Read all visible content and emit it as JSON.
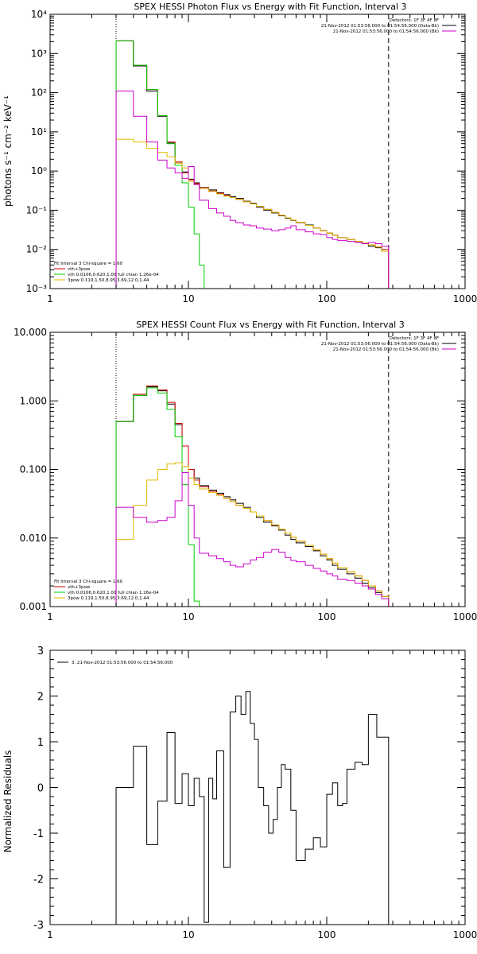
{
  "chart_data": [
    {
      "type": "line",
      "title": "SPEX HESSI Photon Flux vs Energy with Fit Function, Interval 3",
      "xlabel": "",
      "ylabel": "photons s⁻¹ cm⁻² keV⁻¹",
      "xscale": "log",
      "yscale": "log",
      "xlim": [
        1,
        1000
      ],
      "ylim": [
        0.001,
        10000
      ],
      "x_ticks": [
        "1",
        "10",
        "100",
        "1000"
      ],
      "y_ticks": [
        "10⁻³",
        "10⁻²",
        "10⁻¹",
        "10⁰",
        "10¹",
        "10²",
        "10³",
        "10⁴"
      ],
      "legend_top_right": {
        "lines": [
          "Detectors: 1F 3F 4F 8F",
          "21-Nov-2012 01:53:56.000 to 01:54:56.000 (Data-Bk)",
          "21-Nov-2012 01:53:56.000 to 01:54:56.000 (Bk)"
        ],
        "colors": [
          "#000000",
          "#000000",
          "#cc00cc"
        ]
      },
      "legend_bottom_left": {
        "header": "Fit Interval 3   Chi-square = 1.60",
        "lines": [
          "vth+3pow",
          "vth 0.0106,0.620,1.00  full chian 1.26e-04",
          "3pow 0.119,1.50,8.95,3.69,12.0,1.44"
        ],
        "colors": [
          "#cc0000",
          "#00cc00",
          "#ddbb00"
        ]
      },
      "vlines": [
        {
          "x": 3.0,
          "style": "dotted"
        },
        {
          "x": 280,
          "style": "dashed"
        }
      ],
      "series": [
        {
          "role": "data-bk",
          "color": "#000000",
          "edges": [
            3,
            4,
            5,
            6,
            7,
            8,
            9,
            10,
            11,
            12,
            14,
            16,
            18,
            20,
            22,
            25,
            28,
            31,
            35,
            40,
            45,
            50,
            55,
            60,
            70,
            80,
            90,
            100,
            110,
            120,
            140,
            160,
            180,
            200,
            225,
            250,
            280
          ],
          "values": [
            2100,
            480,
            110,
            25,
            5.2,
            1.6,
            0.95,
            0.62,
            0.5,
            0.38,
            0.33,
            0.28,
            0.25,
            0.22,
            0.2,
            0.17,
            0.15,
            0.12,
            0.1,
            0.085,
            0.072,
            0.062,
            0.055,
            0.048,
            0.042,
            0.035,
            0.03,
            0.026,
            0.023,
            0.02,
            0.018,
            0.016,
            0.014,
            0.012,
            0.011,
            0.009
          ]
        },
        {
          "role": "vth+3pow",
          "color": "#cc0000",
          "edges": [
            3,
            4,
            5,
            6,
            7,
            8,
            9,
            10,
            11,
            12,
            14,
            16,
            18,
            20,
            22,
            25,
            28,
            31,
            35,
            40,
            45,
            50,
            55,
            60,
            70,
            80,
            90,
            100,
            110,
            120,
            140,
            160,
            180,
            200,
            225,
            250,
            280
          ],
          "values": [
            2100,
            500,
            120,
            26,
            5.5,
            1.7,
            0.9,
            0.6,
            0.48,
            0.37,
            0.31,
            0.27,
            0.24,
            0.21,
            0.19,
            0.165,
            0.145,
            0.125,
            0.105,
            0.088,
            0.074,
            0.064,
            0.056,
            0.049,
            0.041,
            0.035,
            0.03,
            0.026,
            0.023,
            0.02,
            0.018,
            0.016,
            0.0145,
            0.013,
            0.0115,
            0.01
          ]
        },
        {
          "role": "vth",
          "color": "#00cc00",
          "edges": [
            3,
            4,
            5,
            6,
            7,
            8,
            9,
            10,
            11,
            12,
            13
          ],
          "values": [
            2100,
            500,
            120,
            26,
            5.0,
            1.4,
            0.5,
            0.12,
            0.025,
            0.004
          ]
        },
        {
          "role": "3pow",
          "color": "#ddbb00",
          "edges": [
            3,
            4,
            5,
            6,
            7,
            8,
            9,
            10,
            11,
            12,
            14,
            16,
            18,
            20,
            22,
            25,
            28,
            31,
            35,
            40,
            45,
            50,
            55,
            60,
            70,
            80,
            90,
            100,
            110,
            120,
            140,
            160,
            180,
            200,
            225,
            250,
            280
          ],
          "values": [
            6.5,
            5.5,
            3.8,
            3.0,
            2.3,
            1.6,
            1.2,
            0.55,
            0.45,
            0.36,
            0.3,
            0.26,
            0.23,
            0.21,
            0.19,
            0.165,
            0.145,
            0.125,
            0.105,
            0.088,
            0.074,
            0.064,
            0.056,
            0.049,
            0.041,
            0.035,
            0.03,
            0.026,
            0.023,
            0.02,
            0.018,
            0.016,
            0.0145,
            0.013,
            0.0115,
            0.009
          ]
        },
        {
          "role": "bk",
          "color": "#cc00cc",
          "edges": [
            3,
            4,
            5,
            6,
            7,
            8,
            9,
            10,
            11,
            12,
            14,
            16,
            18,
            20,
            22,
            25,
            28,
            31,
            35,
            40,
            45,
            50,
            55,
            60,
            70,
            80,
            90,
            100,
            110,
            120,
            140,
            160,
            180,
            200,
            225,
            250,
            280
          ],
          "values": [
            110,
            25,
            5.5,
            1.9,
            1.2,
            0.9,
            0.65,
            1.3,
            0.45,
            0.18,
            0.11,
            0.085,
            0.07,
            0.055,
            0.048,
            0.042,
            0.04,
            0.035,
            0.033,
            0.03,
            0.032,
            0.035,
            0.04,
            0.032,
            0.028,
            0.025,
            0.024,
            0.02,
            0.018,
            0.017,
            0.016,
            0.015,
            0.014,
            0.015,
            0.014,
            0.012
          ]
        }
      ]
    },
    {
      "type": "line",
      "title": "SPEX HESSI Count Flux vs Energy with Fit Function, Interval 3",
      "xlabel": "",
      "ylabel": "",
      "xscale": "log",
      "yscale": "log",
      "xlim": [
        1,
        1000
      ],
      "ylim": [
        0.001,
        10
      ],
      "x_ticks": [
        "1",
        "10",
        "100",
        "1000"
      ],
      "y_ticks": [
        "0.001",
        "0.010",
        "0.100",
        "1.000",
        "10.000"
      ],
      "legend_top_right": {
        "lines": [
          "Detectors: 1F 3F 4F 8F",
          "21-Nov-2012 01:53:56.000 to 01:54:56.000 (Data-Bk)",
          "21-Nov-2012 01:53:56.000 to 01:54:56.000 (Bk)"
        ],
        "colors": [
          "#000000",
          "#000000",
          "#cc00cc"
        ]
      },
      "legend_bottom_left": {
        "header": "Fit Interval 3   Chi-square = 1.60",
        "lines": [
          "vth+3pow",
          "vth 0.0106,0.620,1.00  full chian 1.26e-04",
          "3pow 0.119,1.50,8.95,3.69,12.0,1.44"
        ],
        "colors": [
          "#cc0000",
          "#00cc00",
          "#ddbb00"
        ]
      },
      "vlines": [
        {
          "x": 3.0,
          "style": "dotted"
        },
        {
          "x": 280,
          "style": "dashed"
        }
      ],
      "series": [
        {
          "role": "data-bk",
          "color": "#000000",
          "edges": [
            3,
            4,
            5,
            6,
            7,
            8,
            9,
            10,
            11,
            12,
            14,
            16,
            18,
            20,
            22,
            25,
            28,
            31,
            35,
            40,
            45,
            50,
            55,
            60,
            70,
            80,
            90,
            100,
            110,
            120,
            140,
            160,
            180,
            200,
            225,
            250,
            280
          ],
          "values": [
            0.5,
            1.2,
            1.6,
            1.4,
            0.9,
            0.45,
            0.22,
            0.1,
            0.075,
            0.058,
            0.05,
            0.045,
            0.04,
            0.036,
            0.032,
            0.028,
            0.024,
            0.02,
            0.017,
            0.015,
            0.013,
            0.011,
            0.0095,
            0.0085,
            0.0075,
            0.0065,
            0.0055,
            0.0048,
            0.004,
            0.0035,
            0.003,
            0.0026,
            0.0022,
            0.0019,
            0.0016,
            0.0014
          ]
        },
        {
          "role": "vth+3pow",
          "color": "#cc0000",
          "edges": [
            3,
            4,
            5,
            6,
            7,
            8,
            9,
            10,
            11,
            12,
            14,
            16,
            18,
            20,
            22,
            25,
            28,
            31,
            35,
            40,
            45,
            50,
            55,
            60,
            70,
            80,
            90,
            100,
            110,
            120,
            140,
            160,
            180,
            200,
            225,
            250,
            280
          ],
          "values": [
            0.5,
            1.25,
            1.65,
            1.45,
            0.95,
            0.47,
            0.22,
            0.1,
            0.07,
            0.056,
            0.048,
            0.043,
            0.038,
            0.034,
            0.03,
            0.027,
            0.024,
            0.021,
            0.018,
            0.0155,
            0.0135,
            0.0118,
            0.0103,
            0.009,
            0.0078,
            0.0067,
            0.0058,
            0.005,
            0.0043,
            0.0037,
            0.0032,
            0.0028,
            0.0024,
            0.002,
            0.0017,
            0.0014
          ]
        },
        {
          "role": "vth",
          "color": "#00cc00",
          "edges": [
            3,
            4,
            5,
            6,
            7,
            8,
            9,
            10,
            11,
            12
          ],
          "values": [
            0.5,
            1.2,
            1.55,
            1.3,
            0.75,
            0.3,
            0.06,
            0.008,
            0.0012
          ]
        },
        {
          "role": "3pow",
          "color": "#ddbb00",
          "edges": [
            3,
            4,
            5,
            6,
            7,
            8,
            9,
            10,
            11,
            12,
            14,
            16,
            18,
            20,
            22,
            25,
            28,
            31,
            35,
            40,
            45,
            50,
            55,
            60,
            70,
            80,
            90,
            100,
            110,
            120,
            140,
            160,
            180,
            200,
            225,
            250,
            280
          ],
          "values": [
            0.0095,
            0.03,
            0.07,
            0.1,
            0.12,
            0.125,
            0.11,
            0.075,
            0.06,
            0.052,
            0.046,
            0.042,
            0.038,
            0.034,
            0.03,
            0.027,
            0.024,
            0.021,
            0.018,
            0.0155,
            0.0135,
            0.0118,
            0.0103,
            0.009,
            0.0078,
            0.0067,
            0.0058,
            0.005,
            0.0043,
            0.0037,
            0.0032,
            0.0028,
            0.0024,
            0.002,
            0.0017,
            0.0014
          ]
        },
        {
          "role": "bk",
          "color": "#cc00cc",
          "edges": [
            3,
            4,
            5,
            6,
            7,
            8,
            9,
            10,
            11,
            12,
            14,
            16,
            18,
            20,
            22,
            25,
            28,
            31,
            35,
            40,
            45,
            50,
            55,
            60,
            70,
            80,
            90,
            100,
            110,
            120,
            140,
            160,
            180,
            200,
            225,
            250,
            280
          ],
          "values": [
            0.028,
            0.02,
            0.017,
            0.018,
            0.02,
            0.035,
            0.09,
            0.03,
            0.01,
            0.006,
            0.0055,
            0.005,
            0.0045,
            0.004,
            0.0038,
            0.0042,
            0.0048,
            0.0052,
            0.0062,
            0.0068,
            0.0062,
            0.0052,
            0.0047,
            0.0045,
            0.004,
            0.0036,
            0.0033,
            0.003,
            0.0028,
            0.0025,
            0.0024,
            0.0022,
            0.002,
            0.0018,
            0.0015,
            0.0013
          ]
        }
      ]
    },
    {
      "type": "line",
      "title": "",
      "xlabel": "",
      "ylabel": "Normalized Residuals",
      "xscale": "log",
      "xlim": [
        1,
        1000
      ],
      "ylim": [
        -3,
        3
      ],
      "x_ticks": [
        "1",
        "10",
        "100",
        "1000"
      ],
      "y_ticks": [
        "-3",
        "-2",
        "-1",
        "0",
        "1",
        "2",
        "3"
      ],
      "legend": "3. 21-Nov-2012 01:53:56.000 to 01:54:56.000",
      "series": [
        {
          "color": "#000000",
          "edges": [
            3,
            4,
            5,
            6,
            7,
            8,
            9,
            10,
            11,
            12,
            13,
            14,
            15,
            16,
            18,
            20,
            22,
            24,
            26,
            28,
            30,
            32,
            35,
            38,
            41,
            44,
            47,
            50,
            55,
            60,
            65,
            70,
            80,
            90,
            100,
            110,
            120,
            130,
            140,
            160,
            180,
            200,
            230,
            260,
            280
          ],
          "values": [
            0.0,
            0.9,
            -1.25,
            -0.3,
            1.2,
            -0.35,
            0.3,
            -0.4,
            0.2,
            -0.2,
            -2.95,
            0.2,
            -0.25,
            0.8,
            -1.75,
            1.65,
            2.0,
            1.6,
            2.1,
            1.4,
            1.05,
            0.0,
            -0.4,
            -1.0,
            -0.7,
            0.0,
            0.5,
            0.4,
            -0.5,
            -1.6,
            -1.6,
            -1.35,
            -1.1,
            -1.3,
            -0.15,
            0.1,
            -0.4,
            -0.35,
            0.4,
            0.55,
            0.5,
            1.6,
            1.1,
            1.1
          ]
        }
      ]
    }
  ]
}
